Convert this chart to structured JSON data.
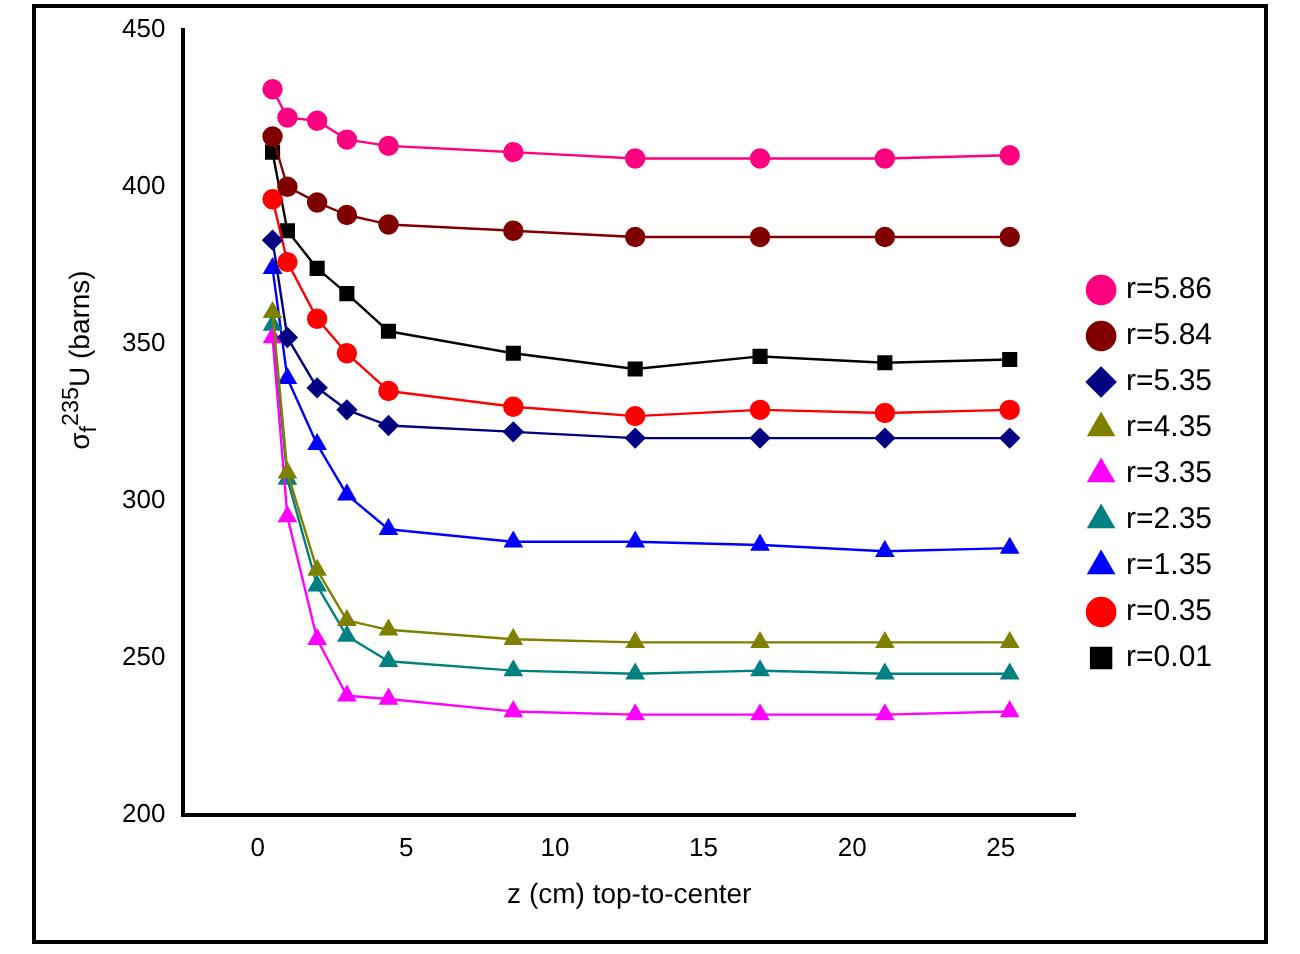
{
  "chart_data": {
    "type": "line",
    "xlabel": "z (cm) top-to-center",
    "ylabel": "σ$_{f}$$^{235}$U (barns)",
    "x": [
      0.5,
      1,
      2,
      3,
      4.4,
      8.6,
      12.7,
      16.9,
      21.1,
      25.3
    ],
    "xlim": [
      -2.5,
      27.5
    ],
    "xticks": [
      0,
      5,
      10,
      15,
      20,
      25
    ],
    "ylim": [
      200,
      450
    ],
    "yticks": [
      200,
      250,
      300,
      350,
      400,
      450
    ],
    "grid": false,
    "legend": "right",
    "line_style": "solid",
    "series": [
      {
        "name": "r=0.01",
        "color": "#000000",
        "marker": "square",
        "values": [
          411,
          386,
          374,
          366,
          354,
          347,
          342,
          346,
          344,
          345
        ]
      },
      {
        "name": "r=0.35",
        "color": "#ff0000",
        "marker": "circle",
        "values": [
          396,
          376,
          358,
          347,
          335,
          330,
          327,
          329,
          328,
          329
        ]
      },
      {
        "name": "r=1.35",
        "color": "#0000ff",
        "marker": "triangle",
        "values": [
          374,
          339,
          318,
          302,
          291,
          287,
          287,
          286,
          284,
          285
        ]
      },
      {
        "name": "r=2.35",
        "color": "#008080",
        "marker": "triangle",
        "values": [
          356,
          307,
          273,
          257,
          249,
          246,
          245,
          246,
          245,
          245
        ]
      },
      {
        "name": "r=3.35",
        "color": "#ff00ff",
        "marker": "triangle",
        "values": [
          352,
          295,
          256,
          238,
          237,
          233,
          232,
          232,
          232,
          233
        ]
      },
      {
        "name": "r=4.35",
        "color": "#808000",
        "marker": "triangle",
        "values": [
          360,
          309,
          278,
          262,
          259,
          256,
          255,
          255,
          255,
          255
        ]
      },
      {
        "name": "r=5.35",
        "color": "#000080",
        "marker": "diamond",
        "values": [
          383,
          352,
          336,
          329,
          324,
          322,
          320,
          320,
          320,
          320
        ]
      },
      {
        "name": "r=5.84",
        "color": "#800000",
        "marker": "circle",
        "values": [
          416,
          400,
          395,
          391,
          388,
          386,
          384,
          384,
          384,
          384
        ]
      },
      {
        "name": "r=5.86",
        "color": "#ff0080",
        "marker": "circle",
        "values": [
          431,
          422,
          421,
          415,
          413,
          411,
          409,
          409,
          409,
          410
        ]
      }
    ]
  }
}
